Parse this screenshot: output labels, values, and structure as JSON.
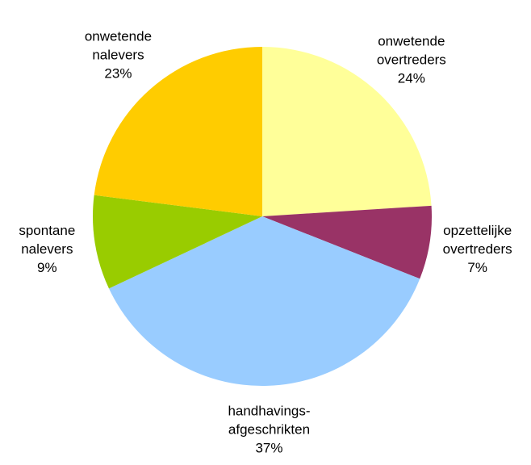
{
  "chart_data": {
    "type": "pie",
    "categories": [
      [
        "onwetende",
        "overtreders"
      ],
      [
        "opzettelijke",
        "overtreders"
      ],
      [
        "handhavings-",
        "afgeschrikten"
      ],
      [
        "spontane",
        "nalevers"
      ],
      [
        "onwetende",
        "nalevers"
      ]
    ],
    "values": [
      24,
      7,
      37,
      9,
      23
    ],
    "value_labels": [
      "24%",
      "7%",
      "37%",
      "9%",
      "23%"
    ],
    "colors": [
      "#FFFF99",
      "#993366",
      "#99CCFF",
      "#99CC00",
      "#FFCC00"
    ]
  }
}
